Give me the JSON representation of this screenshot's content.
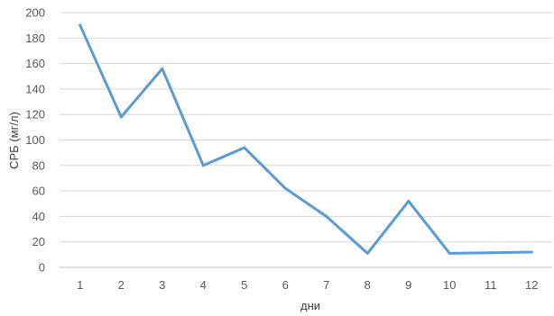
{
  "chart_data": {
    "type": "line",
    "title": "",
    "xlabel": "дни",
    "ylabel": "СРБ (мг/л)",
    "categories": [
      "1",
      "2",
      "3",
      "4",
      "5",
      "6",
      "7",
      "8",
      "9",
      "10",
      "11",
      "12"
    ],
    "series": [
      {
        "values": [
          190,
          118,
          156,
          80,
          94,
          62,
          40,
          11,
          52,
          11,
          11.5,
          12
        ],
        "color": "#5b9bd5"
      }
    ],
    "ylim": [
      0,
      200
    ],
    "yticks": [
      0,
      20,
      40,
      60,
      80,
      100,
      120,
      140,
      160,
      180,
      200
    ],
    "grid": true,
    "legend": "none"
  }
}
